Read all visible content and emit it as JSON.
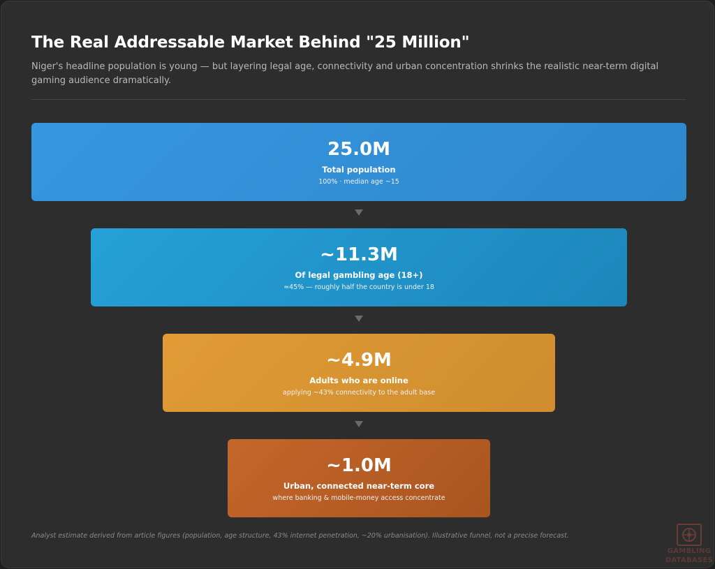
{
  "header": {
    "title": "The Real Addressable Market Behind \"25 Million\"",
    "subtitle": "Niger's headline population is young — but layering legal age, connectivity and urban concentration shrinks the realistic near-term digital gaming audience dramatically."
  },
  "funnel": {
    "stages": [
      {
        "value": "25.0M",
        "label": "Total population",
        "detail": "100% · median age ~15",
        "color": "#3597e0"
      },
      {
        "value": "~11.3M",
        "label": "Of legal gambling age (18+)",
        "detail": "≈45% — roughly half the country is under 18",
        "color": "#25a1d8"
      },
      {
        "value": "~4.9M",
        "label": "Adults who are online",
        "detail": "applying ~43% connectivity to the adult base",
        "color": "#e09b35"
      },
      {
        "value": "~1.0M",
        "label": "Urban, connected near-term core",
        "detail": "where banking & mobile-money access concentrate",
        "color": "#c4672b"
      }
    ],
    "arrow_icon": "down-triangle-icon"
  },
  "footnote": "Analyst estimate derived from article figures (population, age structure, 43% internet penetration, ~20% urbanisation). Illustrative funnel, not a precise forecast.",
  "logo": {
    "line1": "GAMBLING",
    "line2": "DATABASES",
    "icon": "roulette-wheel-icon"
  }
}
